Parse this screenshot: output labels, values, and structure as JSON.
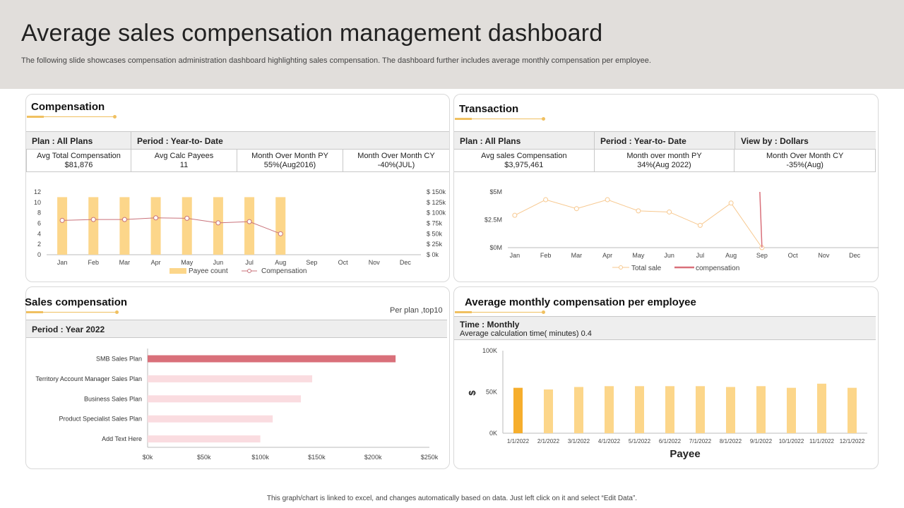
{
  "header": {
    "title": "Average sales compensation management dashboard",
    "subtitle": "The following slide showcases compensation administration dashboard highlighting sales compensation. The dashboard further includes average monthly compensation per employee."
  },
  "compensation": {
    "title": "Compensation",
    "plan": "Plan : All Plans",
    "period": "Period : Year-to- Date",
    "metrics": [
      {
        "label": "Avg Total Compensation",
        "value": "$81,876"
      },
      {
        "label": "Avg Calc Payees",
        "value": "11"
      },
      {
        "label": "Month Over Month PY",
        "value": "55%(Aug2016)"
      },
      {
        "label": "Month Over Month CY",
        "value": "-40%(JUL)"
      }
    ]
  },
  "transaction": {
    "title": "Transaction",
    "plan": "Plan  : All Plans",
    "period": "Period : Year-to- Date",
    "view": "View by : Dollars",
    "metrics": [
      {
        "label": "Avg sales Compensation",
        "value": "$3,975,461"
      },
      {
        "label": "Month over month PY",
        "value": "34%(Aug 2022)"
      },
      {
        "label": "Month Over Month CY",
        "value": "-35%(Aug)"
      }
    ]
  },
  "sales_comp": {
    "title": "Sales compensation",
    "note": "Per plan ,top10",
    "period": "Period : Year 2022"
  },
  "avg_monthly": {
    "title": "Average monthly compensation per employee",
    "time": "Time : Monthly",
    "calc": "Average calculation time( minutes)  0.4"
  },
  "footer": "This graph/chart is linked to excel, and changes automatically based on data. Just left click on it and select “Edit Data”.",
  "colors": {
    "gold": "#fcd68a",
    "gold_dark": "#f6ae2d",
    "line": "#c9727a",
    "red": "#d9707a",
    "pink": "#fadce0",
    "orange_line": "#f7c88f"
  },
  "chart_data": [
    {
      "type": "bar",
      "id": "compensation",
      "categories": [
        "Jan",
        "Feb",
        "Mar",
        "Apr",
        "May",
        "Jun",
        "Jul",
        "Aug",
        "Sep",
        "Oct",
        "Nov",
        "Dec"
      ],
      "y_ticks": [
        "0",
        "2",
        "4",
        "6",
        "8",
        "10",
        "12"
      ],
      "y2_ticks": [
        "$ 0k",
        "$ 25k",
        "$ 50k",
        "$ 75k",
        "$ 100k",
        "$ 125k",
        "$ 150k"
      ],
      "ylim": [
        0,
        12
      ],
      "y2lim": [
        0,
        150
      ],
      "series": [
        {
          "name": "Payee count",
          "type": "bar",
          "values": [
            11,
            11,
            11,
            11,
            11,
            11,
            11,
            11,
            null,
            null,
            null,
            null
          ]
        },
        {
          "name": "Compensation",
          "type": "line",
          "axis": "y2",
          "values": [
            82,
            84,
            84,
            88,
            87,
            76,
            79,
            50,
            null,
            null,
            null,
            null
          ]
        }
      ],
      "legend": "bottom"
    },
    {
      "type": "line",
      "id": "transaction",
      "categories": [
        "Jan",
        "Feb",
        "Mar",
        "Apr",
        "May",
        "Jun",
        "Jul",
        "Aug",
        "Sep",
        "Oct",
        "Nov",
        "Dec"
      ],
      "y_ticks": [
        "$0M",
        "$2.5M",
        "$5M"
      ],
      "ylim": [
        0,
        5
      ],
      "series": [
        {
          "name": "Total sale",
          "values": [
            2.9,
            4.3,
            3.5,
            4.3,
            3.3,
            3.2,
            2.0,
            4.0,
            0.0,
            null,
            null,
            null
          ]
        },
        {
          "name": "compensation",
          "values": [
            null,
            null,
            null,
            null,
            null,
            null,
            null,
            5.0,
            0.0,
            null,
            null,
            null
          ]
        }
      ],
      "legend": "bottom"
    },
    {
      "type": "bar",
      "id": "sales_compensation",
      "orientation": "horizontal",
      "categories": [
        "SMB Sales Plan",
        "Territory Account Manager Sales Plan",
        "Business Sales Plan",
        "Product Specialist Sales Plan",
        "Add Text Here"
      ],
      "values": [
        220,
        146,
        136,
        111,
        100
      ],
      "x_ticks": [
        "$0k",
        "$50k",
        "$100k",
        "$150k",
        "$200k",
        "$250k"
      ],
      "xlim": [
        0,
        250
      ]
    },
    {
      "type": "bar",
      "id": "avg_monthly",
      "categories": [
        "1/1/2022",
        "2/1/2022",
        "3/1/2022",
        "4/1/2022",
        "5/1/2022",
        "6/1/2022",
        "7/1/2022",
        "8/1/2022",
        "9/1/2022",
        "10/1/2022",
        "11/1/2022",
        "12/1/2022"
      ],
      "values": [
        55,
        53,
        56,
        57,
        57,
        57,
        57,
        56,
        57,
        55,
        60,
        55
      ],
      "y_ticks": [
        "0K",
        "50K",
        "100K"
      ],
      "ylim": [
        0,
        100
      ],
      "ylabel": "$",
      "xlabel": "Payee"
    }
  ]
}
